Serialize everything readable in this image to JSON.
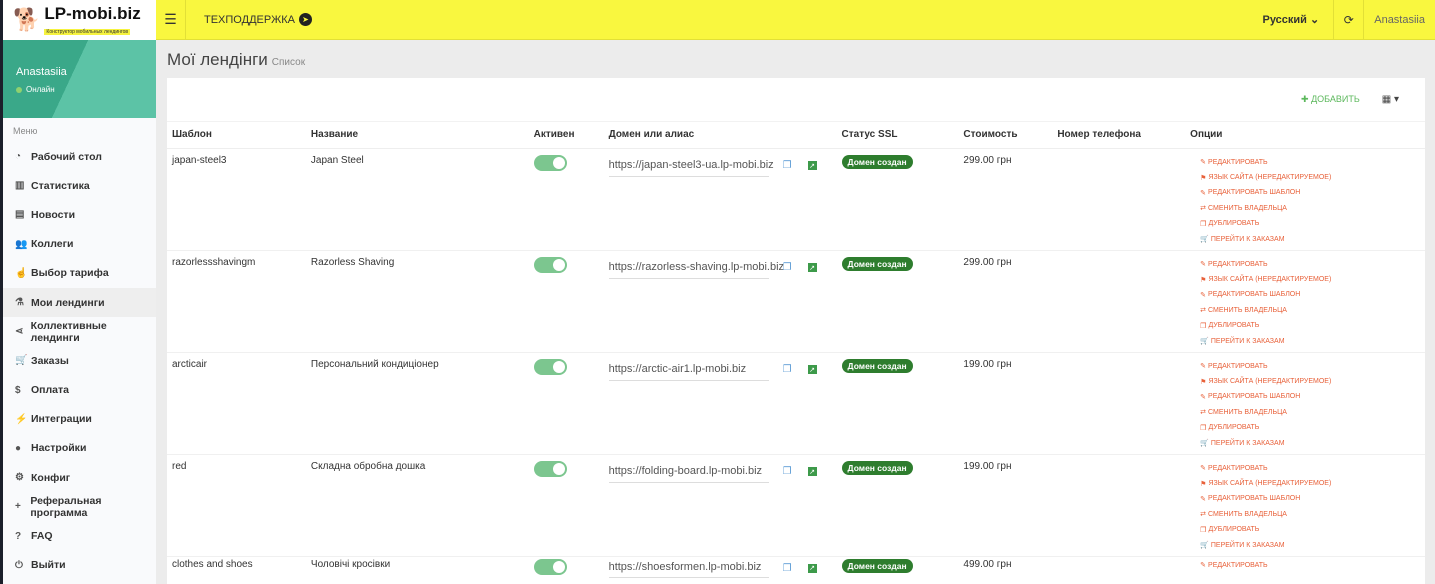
{
  "brand": {
    "name": "LP-mobi.biz",
    "tagline": "Конструктор мобильных лендингов"
  },
  "topbar": {
    "support": "ТЕХПОДДЕРЖКА",
    "language": "Русский",
    "user": "Anastasiia"
  },
  "profile": {
    "name": "Anastasiia",
    "status": "Онлайн"
  },
  "menu": {
    "heading": "Меню",
    "items": [
      {
        "label": "Рабочий стол",
        "icon": "dashboard-icon",
        "g": "◔"
      },
      {
        "label": "Статистика",
        "icon": "chart-icon",
        "g": "▥"
      },
      {
        "label": "Новости",
        "icon": "newspaper-icon",
        "g": "▤"
      },
      {
        "label": "Коллеги",
        "icon": "users-icon",
        "g": "👥"
      },
      {
        "label": "Выбор тарифа",
        "icon": "hand-icon",
        "g": "☝"
      },
      {
        "label": "Мои лендинги",
        "icon": "sitemap-icon",
        "g": "⚗",
        "active": true
      },
      {
        "label": "Коллективные лендинги",
        "icon": "share-icon",
        "g": "⋖"
      },
      {
        "label": "Заказы",
        "icon": "cart-icon",
        "g": "🛒"
      },
      {
        "label": "Оплата",
        "icon": "dollar-icon",
        "g": "$"
      },
      {
        "label": "Интеграции",
        "icon": "plug-icon",
        "g": "⚡"
      },
      {
        "label": "Настройки",
        "icon": "user-icon",
        "g": "●"
      },
      {
        "label": "Конфиг",
        "icon": "cogs-icon",
        "g": "⚙"
      },
      {
        "label": "Реферальная программа",
        "icon": "user-plus-icon",
        "g": "+"
      },
      {
        "label": "FAQ",
        "icon": "question-icon",
        "g": "?"
      },
      {
        "label": "Выйти",
        "icon": "power-icon",
        "g": "⏻"
      }
    ]
  },
  "page": {
    "title": "Мої лендінги",
    "subtitle": "Список",
    "add": "ДОБАВИТЬ"
  },
  "table": {
    "headers": [
      "Шаблон",
      "Название",
      "Активен",
      "Домен или алиас",
      "Статус SSL",
      "Стоимость",
      "Номер телефона",
      "Опции"
    ],
    "actions": [
      {
        "label": "РЕДАКТИРОВАТЬ",
        "g": "✎"
      },
      {
        "label": "ЯЗЫК САЙТА (НЕРЕДАКТИРУЕМОЕ)",
        "g": "⚑"
      },
      {
        "label": "РЕДАКТИРОВАТЬ ШАБЛОН",
        "g": "✎"
      },
      {
        "label": "СМЕНИТЬ ВЛАДЕЛЬЦА",
        "g": "⇄"
      },
      {
        "label": "ДУБЛИРОВАТЬ",
        "g": "❐"
      },
      {
        "label": "ПЕРЕЙТИ К ЗАКАЗАМ",
        "g": "🛒"
      }
    ],
    "rows": [
      {
        "template": "japan-steel3",
        "name": "Japan Steel",
        "active": true,
        "domain": "https://japan-steel3-ua.lp-mobi.biz",
        "ssl": "Домен создан",
        "price": "299.00 грн",
        "phone": ""
      },
      {
        "template": "razorlessshavingm",
        "name": "Razorless Shaving",
        "active": true,
        "domain": "https://razorless-shaving.lp-mobi.biz",
        "ssl": "Домен создан",
        "price": "299.00 грн",
        "phone": ""
      },
      {
        "template": "arcticair",
        "name": "Персональний кондиціонер",
        "active": true,
        "domain": "https://arctic-air1.lp-mobi.biz",
        "ssl": "Домен создан",
        "price": "199.00 грн",
        "phone": ""
      },
      {
        "template": "red",
        "name": "Складна обробна дошка",
        "active": true,
        "domain": "https://folding-board.lp-mobi.biz",
        "ssl": "Домен создан",
        "price": "199.00 грн",
        "phone": ""
      },
      {
        "template": "clothes and shoes",
        "name": "Чоловічі кросівки",
        "active": true,
        "domain": "https://shoesformen.lp-mobi.biz",
        "ssl": "Домен создан",
        "price": "499.00 грн",
        "phone": ""
      }
    ]
  }
}
